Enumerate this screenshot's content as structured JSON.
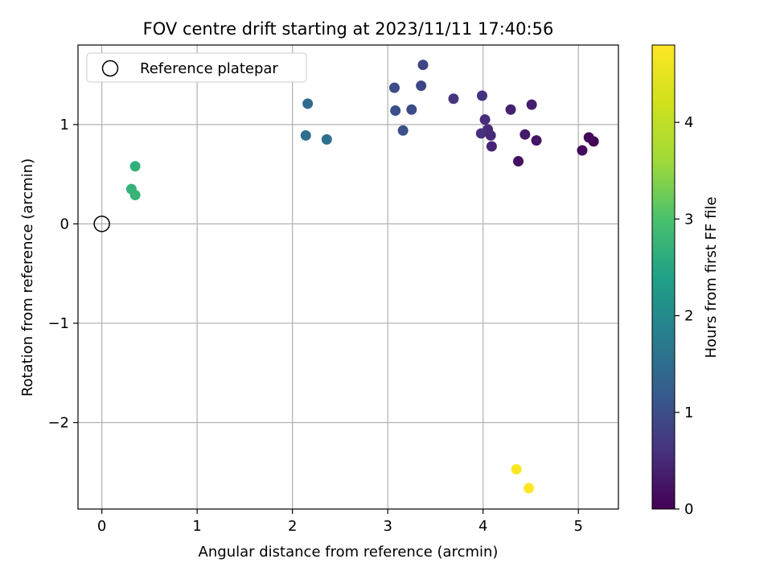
{
  "chart_data": {
    "type": "scatter",
    "title": "FOV centre drift starting at 2023/11/11 17:40:56",
    "xlabel": "Angular distance from reference (arcmin)",
    "ylabel": "Rotation from reference (arcmin)",
    "xlim": [
      -0.25,
      5.42
    ],
    "ylim": [
      -2.87,
      1.8
    ],
    "xticks": [
      0,
      1,
      2,
      3,
      4,
      5
    ],
    "xtick_labels": [
      "0",
      "1",
      "2",
      "3",
      "4",
      "5"
    ],
    "yticks": [
      -2,
      -1,
      0,
      1
    ],
    "ytick_labels": [
      "−2",
      "−1",
      "0",
      "1"
    ],
    "grid": true,
    "legend": {
      "placement": "top-left",
      "entries": [
        {
          "label": "Reference platepar",
          "marker": "open-circle",
          "x": 0,
          "y": 0
        }
      ]
    },
    "colorbar": {
      "label": "Hours from first FF file",
      "min": 0,
      "max": 4.8,
      "ticks": [
        0,
        1,
        2,
        3,
        4
      ],
      "tick_labels": [
        "0",
        "1",
        "2",
        "3",
        "4"
      ],
      "colormap": "viridis"
    },
    "points": [
      {
        "x": 5.16,
        "y": 0.83,
        "c": 0.05
      },
      {
        "x": 5.11,
        "y": 0.87,
        "c": 0.1
      },
      {
        "x": 5.04,
        "y": 0.74,
        "c": 0.12
      },
      {
        "x": 4.37,
        "y": 0.63,
        "c": 0.18
      },
      {
        "x": 4.56,
        "y": 0.84,
        "c": 0.25
      },
      {
        "x": 4.44,
        "y": 0.9,
        "c": 0.3
      },
      {
        "x": 4.51,
        "y": 1.2,
        "c": 0.35
      },
      {
        "x": 4.29,
        "y": 1.15,
        "c": 0.4
      },
      {
        "x": 4.09,
        "y": 0.78,
        "c": 0.45
      },
      {
        "x": 4.08,
        "y": 0.89,
        "c": 0.5
      },
      {
        "x": 4.05,
        "y": 0.95,
        "c": 0.52
      },
      {
        "x": 4.02,
        "y": 1.05,
        "c": 0.55
      },
      {
        "x": 3.98,
        "y": 0.91,
        "c": 0.6
      },
      {
        "x": 3.99,
        "y": 1.29,
        "c": 0.62
      },
      {
        "x": 3.69,
        "y": 1.26,
        "c": 0.65
      },
      {
        "x": 3.37,
        "y": 1.6,
        "c": 0.85
      },
      {
        "x": 3.35,
        "y": 1.39,
        "c": 0.9
      },
      {
        "x": 3.07,
        "y": 1.37,
        "c": 0.95
      },
      {
        "x": 3.25,
        "y": 1.15,
        "c": 0.95
      },
      {
        "x": 3.08,
        "y": 1.14,
        "c": 1.0
      },
      {
        "x": 3.16,
        "y": 0.94,
        "c": 1.05
      },
      {
        "x": 2.16,
        "y": 1.21,
        "c": 1.45
      },
      {
        "x": 2.14,
        "y": 0.89,
        "c": 1.5
      },
      {
        "x": 2.36,
        "y": 0.85,
        "c": 1.55
      },
      {
        "x": 0.35,
        "y": 0.58,
        "c": 2.65
      },
      {
        "x": 0.31,
        "y": 0.35,
        "c": 2.7
      },
      {
        "x": 0.35,
        "y": 0.29,
        "c": 2.75
      },
      {
        "x": 4.35,
        "y": -2.47,
        "c": 4.75
      },
      {
        "x": 4.48,
        "y": -2.66,
        "c": 4.8
      }
    ]
  }
}
